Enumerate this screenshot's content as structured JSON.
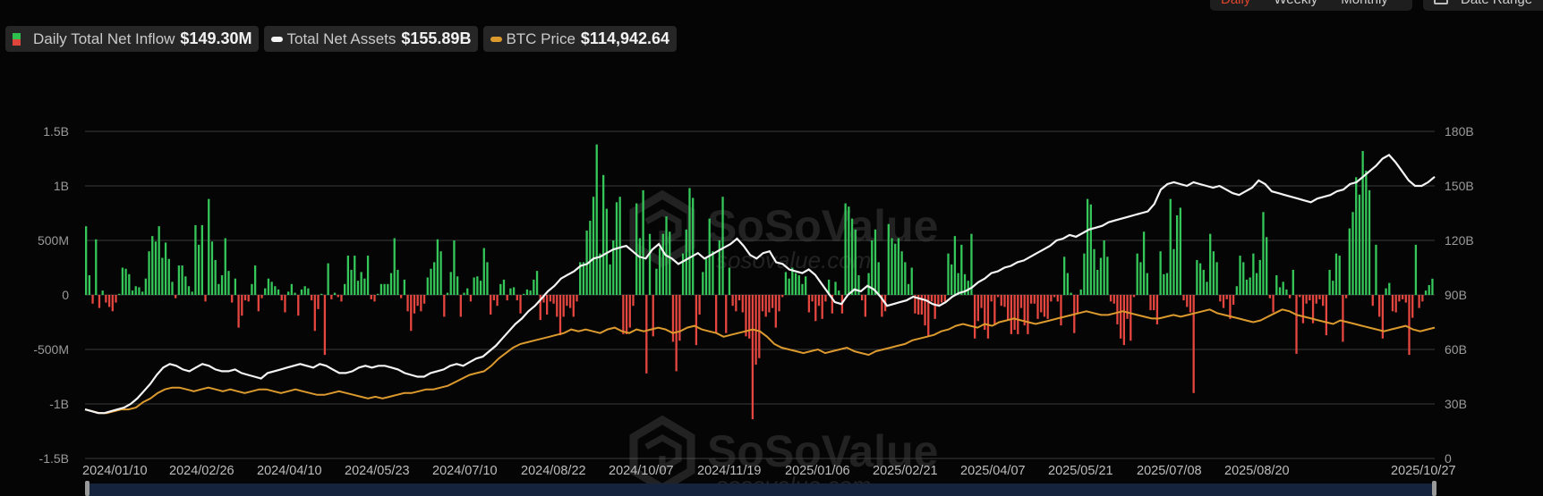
{
  "controls": {
    "period_options": [
      "Daily",
      "Weekly",
      "Monthly"
    ],
    "active_period": "Daily",
    "date_range_label": "Date Range"
  },
  "legend": [
    {
      "label": "Daily Total Net Inflow",
      "value": "$149.30M",
      "swatch": "bar"
    },
    {
      "label": "Total Net Assets",
      "value": "$155.89B",
      "swatch": "line",
      "color": "#ffffff"
    },
    {
      "label": "BTC Price",
      "value": "$114,942.64",
      "swatch": "line",
      "color": "#e0a030"
    }
  ],
  "watermark": {
    "brand": "SoSoValue",
    "site": "sosovalue.com"
  },
  "colors": {
    "inflow_positive": "#35c759",
    "inflow_negative": "#e5463f",
    "net_assets": "#ffffff",
    "btc_price": "#dc9a2e",
    "grid": "#3a3a3a",
    "background": "#050505"
  },
  "chart_data": {
    "type": "bar+line",
    "title": "",
    "x_tick_labels": [
      "2024/01/10",
      "2024/02/26",
      "2024/04/10",
      "2024/05/23",
      "2024/07/10",
      "2024/08/22",
      "2024/10/07",
      "2024/11/19",
      "2025/01/06",
      "2025/02/21",
      "2025/04/07",
      "2025/05/21",
      "2025/07/08",
      "2025/08/20",
      "2025/10/27"
    ],
    "left_axis": {
      "label": "Daily Total Net Inflow",
      "ticks": [
        "1.5B",
        "1B",
        "500M",
        "0",
        "-500M",
        "-1B",
        "-1.5B"
      ],
      "range": [
        -1.5,
        1.5
      ],
      "unit": "USD billions"
    },
    "right_axis": {
      "label": "Total Net Assets / BTC Price",
      "ticks": [
        "180B",
        "150B",
        "120B",
        "90B",
        "60B",
        "30B",
        "0"
      ],
      "range": [
        0,
        180
      ],
      "unit": "USD billions"
    },
    "grid": true,
    "legend_position": "top-left",
    "series": [
      {
        "name": "Daily Total Net Inflow",
        "type": "bar",
        "unit": "USD millions (approx., sampled)",
        "values": [
          630,
          180,
          -80,
          510,
          -120,
          40,
          -70,
          -110,
          -150,
          -70,
          10,
          250,
          240,
          190,
          40,
          80,
          70,
          30,
          150,
          400,
          540,
          490,
          630,
          340,
          480,
          330,
          120,
          -30,
          270,
          270,
          170,
          80,
          30,
          640,
          460,
          640,
          -60,
          880,
          490,
          320,
          100,
          180,
          520,
          220,
          -70,
          150,
          -300,
          -190,
          -50,
          -60,
          100,
          270,
          -150,
          -30,
          60,
          150,
          120,
          80,
          50,
          -50,
          -160,
          30,
          100,
          20,
          -190,
          50,
          80,
          60,
          -50,
          -330,
          -130,
          10,
          -550,
          290,
          -40,
          20,
          -20,
          -60,
          100,
          360,
          230,
          360,
          130,
          210,
          150,
          360,
          -40,
          -60,
          10,
          100,
          100,
          100,
          200,
          520,
          230,
          -30,
          140,
          -150,
          -330,
          -170,
          -100,
          -150,
          -80,
          160,
          240,
          300,
          510,
          400,
          -200,
          20,
          210,
          500,
          170,
          -200,
          20,
          60,
          -60,
          160,
          170,
          130,
          430,
          300,
          -180,
          -50,
          -100,
          100,
          140,
          -50,
          60,
          70,
          -50,
          -170,
          10,
          50,
          40,
          140,
          220,
          -230,
          -70,
          -180,
          -60,
          -80,
          -200,
          -370,
          -200,
          -100,
          -120,
          -200,
          -60,
          300,
          300,
          590,
          680,
          900,
          1380,
          380,
          1100,
          790,
          280,
          500,
          850,
          900,
          -360,
          -360,
          -300,
          -100,
          840,
          520,
          960,
          -720,
          560,
          -380,
          240,
          430,
          560,
          720,
          580,
          -430,
          -700,
          -420,
          380,
          600,
          980,
          890,
          -460,
          -180,
          210,
          340,
          700,
          400,
          -350,
          500,
          900,
          -350,
          250,
          -100,
          -150,
          -50,
          -160,
          -380,
          -400,
          -1140,
          -640,
          -580,
          -150,
          -200,
          -160,
          -120,
          -300,
          -150,
          -20,
          210,
          150,
          250,
          200,
          180,
          100,
          170,
          -160,
          -60,
          -240,
          -100,
          -220,
          -60,
          140,
          -170,
          120,
          40,
          -170,
          840,
          810,
          700,
          600,
          180,
          -50,
          -200,
          200,
          500,
          600,
          300,
          -200,
          -150,
          650,
          520,
          470,
          520,
          400,
          300,
          100,
          250,
          -170,
          -180,
          -180,
          -280,
          -380,
          -60,
          -220,
          -100,
          -70,
          -60,
          380,
          280,
          540,
          200,
          460,
          190,
          130,
          560,
          -400,
          -240,
          -120,
          -320,
          -400,
          -60,
          -280,
          -20,
          -100,
          -110,
          -230,
          -360,
          -320,
          -360,
          -120,
          -280,
          -360,
          -80,
          -80,
          -220,
          -160,
          -200,
          -220,
          -60,
          -20,
          -60,
          -280,
          350,
          200,
          20,
          -350,
          -170,
          50,
          380,
          880,
          830,
          420,
          230,
          340,
          500,
          350,
          -60,
          -80,
          -270,
          -400,
          -460,
          -220,
          -420,
          -20,
          380,
          300,
          580,
          200,
          -140,
          -140,
          -270,
          400,
          190,
          200,
          880,
          420,
          730,
          800,
          -50,
          -110,
          -160,
          -900,
          320,
          290,
          230,
          120,
          560,
          400,
          300,
          -60,
          -120,
          -40,
          -220,
          -90,
          80,
          360,
          300,
          140,
          160,
          380,
          200,
          320,
          760,
          530,
          -30,
          -160,
          180,
          70,
          120,
          50,
          -30,
          230,
          -540,
          -20,
          -260,
          -80,
          -50,
          -260,
          -80,
          -40,
          -100,
          -370,
          230,
          130,
          380,
          360,
          -430,
          -30,
          610,
          760,
          1080,
          920,
          1320,
          1140,
          960,
          -100,
          460,
          -200,
          -400,
          60,
          110,
          -150,
          -160,
          -60,
          -40,
          -70,
          -550,
          -210,
          460,
          -120,
          -60,
          40,
          90,
          149
        ]
      },
      {
        "name": "Total Net Assets",
        "type": "line",
        "unit": "USD billions (approx., sampled)",
        "values": [
          27,
          26,
          25,
          25,
          26,
          27,
          28,
          30,
          33,
          37,
          41,
          46,
          50,
          52,
          51,
          49,
          48,
          50,
          52,
          51,
          49,
          48,
          48,
          49,
          47,
          46,
          45,
          44,
          47,
          48,
          49,
          50,
          51,
          52,
          51,
          50,
          52,
          51,
          49,
          47,
          47,
          48,
          50,
          51,
          50,
          51,
          51,
          50,
          49,
          47,
          46,
          45,
          45,
          47,
          48,
          49,
          51,
          52,
          51,
          53,
          55,
          56,
          59,
          62,
          66,
          70,
          74,
          77,
          81,
          84,
          88,
          92,
          95,
          99,
          101,
          103,
          106,
          107,
          110,
          111,
          113,
          115,
          116,
          117,
          114,
          111,
          110,
          115,
          118,
          112,
          110,
          107,
          109,
          111,
          113,
          110,
          112,
          114,
          116,
          118,
          121,
          117,
          112,
          110,
          113,
          114,
          108,
          107,
          104,
          103,
          102,
          104,
          101,
          96,
          91,
          86,
          85,
          90,
          93,
          92,
          95,
          93,
          89,
          84,
          85,
          86,
          87,
          89,
          88,
          87,
          85,
          84,
          86,
          89,
          91,
          92,
          94,
          97,
          99,
          102,
          103,
          105,
          106,
          108,
          109,
          111,
          113,
          115,
          117,
          120,
          121,
          123,
          122,
          124,
          126,
          127,
          128,
          130,
          131,
          132,
          133,
          134,
          135,
          136,
          140,
          148,
          151,
          152,
          151,
          150,
          152,
          151,
          150,
          149,
          150,
          148,
          146,
          145,
          147,
          149,
          153,
          151,
          147,
          146,
          145,
          144,
          143,
          142,
          141,
          143,
          144,
          145,
          147,
          148,
          151,
          152,
          155,
          158,
          161,
          165,
          167,
          163,
          158,
          153,
          150,
          150,
          152,
          155
        ]
      },
      {
        "name": "BTC Price",
        "type": "line",
        "unit": "USD thousands mapped to right axis (approx., sampled)",
        "values": [
          27,
          26,
          25,
          25,
          26,
          27,
          27,
          28,
          31,
          33,
          36,
          38,
          39,
          39,
          38,
          37,
          38,
          39,
          38,
          37,
          38,
          37,
          36,
          37,
          38,
          38,
          37,
          36,
          37,
          38,
          37,
          36,
          35,
          35,
          36,
          37,
          36,
          35,
          34,
          33,
          34,
          33,
          34,
          35,
          36,
          36,
          37,
          38,
          38,
          39,
          40,
          42,
          44,
          46,
          47,
          48,
          51,
          55,
          58,
          61,
          63,
          64,
          65,
          66,
          67,
          68,
          69,
          71,
          70,
          71,
          70,
          69,
          71,
          72,
          70,
          69,
          71,
          70,
          71,
          72,
          71,
          69,
          70,
          72,
          73,
          71,
          70,
          69,
          67,
          68,
          69,
          70,
          71,
          70,
          67,
          63,
          61,
          60,
          59,
          58,
          59,
          60,
          58,
          59,
          60,
          61,
          59,
          58,
          57,
          59,
          60,
          61,
          62,
          63,
          65,
          66,
          67,
          68,
          70,
          71,
          73,
          74,
          73,
          72,
          74,
          73,
          75,
          76,
          77,
          76,
          75,
          74,
          75,
          76,
          77,
          78,
          79,
          80,
          81,
          80,
          79,
          79,
          80,
          81,
          80,
          79,
          78,
          77,
          77,
          78,
          79,
          78,
          79,
          80,
          81,
          82,
          80,
          79,
          78,
          77,
          76,
          75,
          76,
          78,
          80,
          82,
          81,
          79,
          78,
          77,
          76,
          75,
          74,
          76,
          75,
          74,
          73,
          72,
          71,
          70,
          71,
          72,
          73,
          71,
          70,
          71,
          72
        ]
      }
    ]
  }
}
